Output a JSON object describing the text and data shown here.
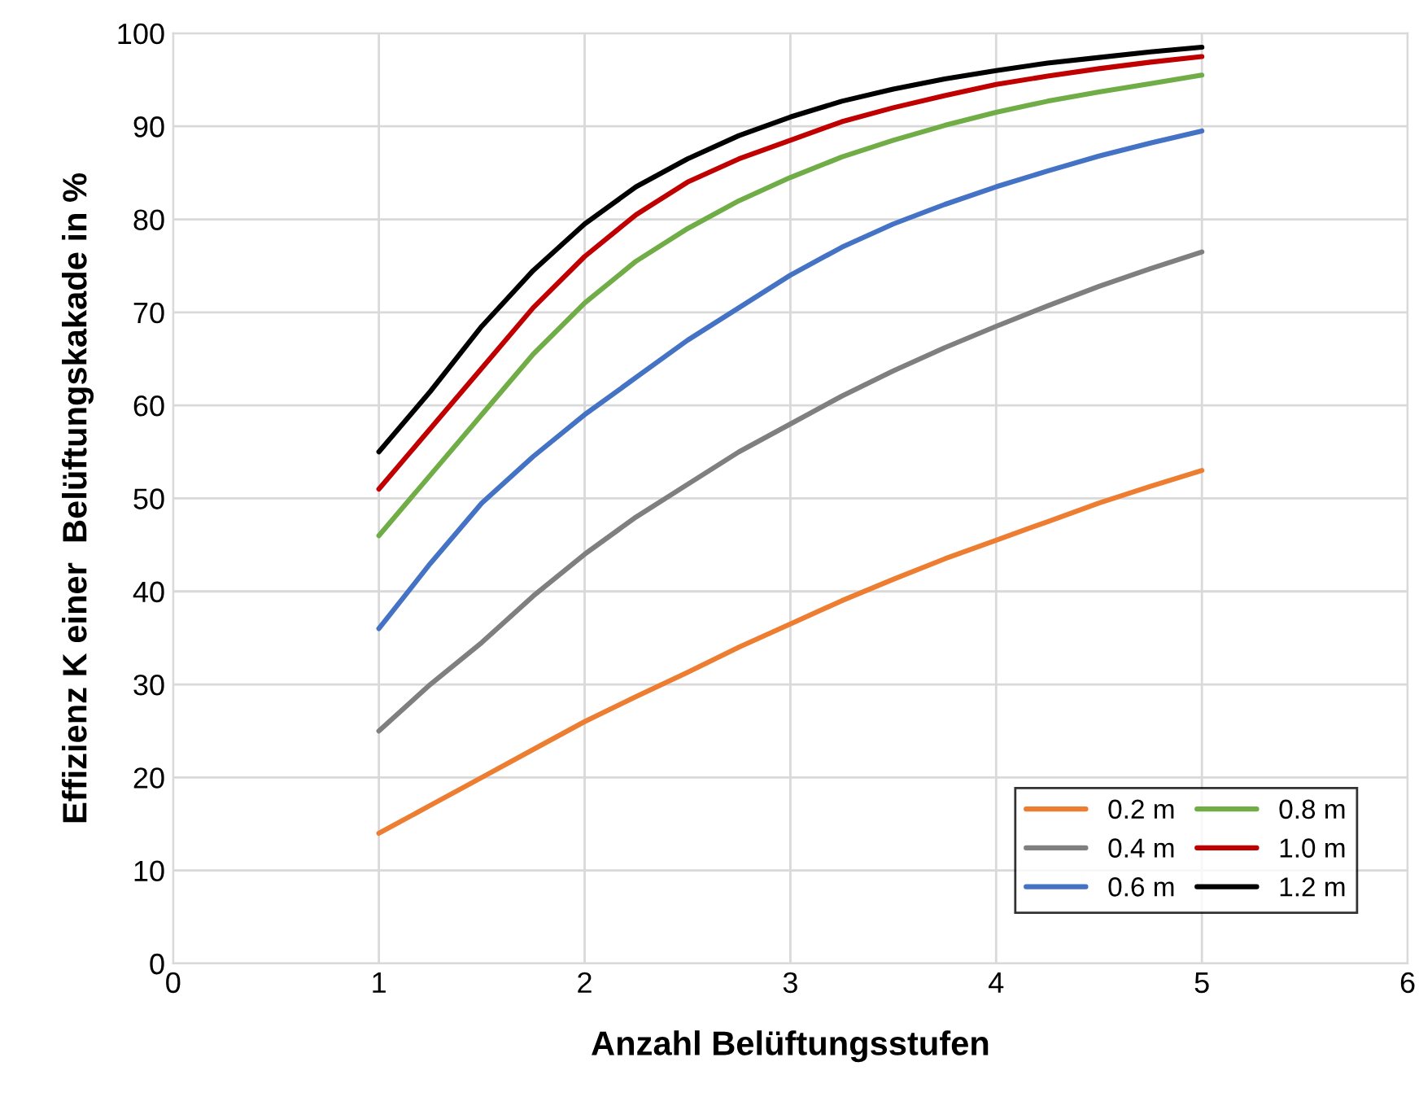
{
  "chart_data": {
    "type": "line",
    "xlabel": "Anzahl Belüftungsstufen",
    "ylabel": "Effizienz K einer  Belüftungskakade in %",
    "x": [
      1,
      1.25,
      1.5,
      1.75,
      2,
      2.25,
      2.5,
      2.75,
      3,
      3.25,
      3.5,
      3.75,
      4,
      4.25,
      4.5,
      4.75,
      5
    ],
    "series": [
      {
        "name": "0.2 m",
        "color": "#ed7d31",
        "values": [
          14,
          17,
          20,
          23,
          26,
          28.7,
          31.3,
          34,
          36.5,
          39,
          41.3,
          43.5,
          45.5,
          47.5,
          49.5,
          51.3,
          53
        ]
      },
      {
        "name": "0.4 m",
        "color": "#7f7f7f",
        "values": [
          25,
          30,
          34.5,
          39.5,
          44,
          48,
          51.5,
          55,
          58,
          61,
          63.7,
          66.2,
          68.5,
          70.7,
          72.8,
          74.7,
          76.5
        ]
      },
      {
        "name": "0.6 m",
        "color": "#4472c4",
        "values": [
          36,
          43,
          49.5,
          54.5,
          59,
          63,
          67,
          70.5,
          74,
          77,
          79.5,
          81.6,
          83.5,
          85.2,
          86.8,
          88.2,
          89.5
        ]
      },
      {
        "name": "0.8 m",
        "color": "#70ad47",
        "values": [
          46,
          52.5,
          59,
          65.5,
          71,
          75.5,
          79,
          82,
          84.5,
          86.7,
          88.5,
          90.1,
          91.5,
          92.7,
          93.7,
          94.6,
          95.5
        ]
      },
      {
        "name": "1.0 m",
        "color": "#c00000",
        "values": [
          51,
          57.5,
          64,
          70.5,
          76,
          80.5,
          84,
          86.5,
          88.5,
          90.5,
          92,
          93.3,
          94.5,
          95.4,
          96.2,
          96.9,
          97.5
        ]
      },
      {
        "name": "1.2 m",
        "color": "#000000",
        "values": [
          55,
          61.5,
          68.5,
          74.5,
          79.5,
          83.5,
          86.5,
          89,
          91,
          92.7,
          94,
          95.1,
          96,
          96.8,
          97.4,
          98,
          98.5
        ]
      }
    ],
    "xlim": [
      0,
      6
    ],
    "xticks": [
      0,
      1,
      2,
      3,
      4,
      5,
      6
    ],
    "ylim": [
      0,
      100
    ],
    "yticks": [
      0,
      10,
      20,
      30,
      40,
      50,
      60,
      70,
      80,
      90,
      100
    ],
    "grid": true,
    "legend": "bottom right",
    "marker": "none",
    "line_style": "solid"
  }
}
